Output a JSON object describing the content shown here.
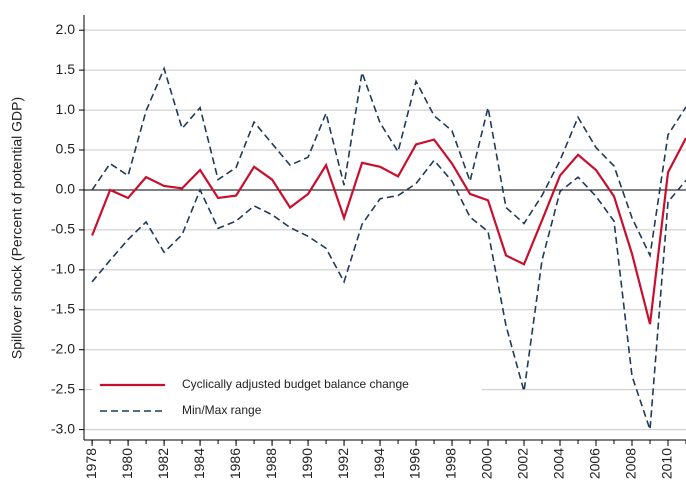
{
  "chart_data": {
    "type": "line",
    "y_label": "Spillover shock (Percent of potential GDP)",
    "x": [
      1978,
      1979,
      1980,
      1981,
      1982,
      1983,
      1984,
      1985,
      1986,
      1987,
      1988,
      1989,
      1990,
      1991,
      1992,
      1993,
      1994,
      1995,
      1996,
      1997,
      1998,
      1999,
      2000,
      2001,
      2002,
      2003,
      2004,
      2005,
      2006,
      2007,
      2008,
      2009,
      2010,
      2011
    ],
    "series": [
      {
        "name": "Cyclically adjusted budget balance change",
        "color": "#c8102e",
        "dash": false,
        "values": [
          -0.57,
          0.0,
          -0.1,
          0.16,
          0.05,
          0.02,
          0.25,
          -0.1,
          -0.07,
          0.29,
          0.13,
          -0.22,
          -0.05,
          0.31,
          -0.35,
          0.34,
          0.29,
          0.17,
          0.57,
          0.63,
          0.33,
          -0.05,
          -0.13,
          -0.82,
          -0.93,
          -0.38,
          0.18,
          0.44,
          0.25,
          -0.08,
          -0.8,
          -1.68,
          0.22,
          0.65
        ]
      },
      {
        "name": "Min/Max range",
        "color": "#1f3b5a",
        "dash": true,
        "values": [
          0.0,
          0.33,
          0.18,
          0.99,
          1.52,
          0.77,
          1.03,
          0.13,
          0.28,
          0.85,
          0.58,
          0.31,
          0.41,
          0.96,
          0.06,
          1.47,
          0.84,
          0.48,
          1.36,
          0.93,
          0.74,
          0.11,
          1.03,
          -0.22,
          -0.42,
          -0.07,
          0.37,
          0.91,
          0.53,
          0.3,
          -0.35,
          -0.82,
          0.69,
          1.04
        ],
        "lower": [
          -1.15,
          -0.88,
          -0.62,
          -0.4,
          -0.78,
          -0.56,
          0.0,
          -0.48,
          -0.39,
          -0.2,
          -0.31,
          -0.47,
          -0.58,
          -0.73,
          -1.15,
          -0.43,
          -0.11,
          -0.07,
          0.08,
          0.37,
          0.11,
          -0.34,
          -0.52,
          -1.7,
          -2.52,
          -0.88,
          -0.02,
          0.16,
          -0.08,
          -0.39,
          -2.33,
          -3.0,
          -0.15,
          0.12
        ]
      }
    ],
    "xlim": [
      1977.55,
      2011
    ],
    "xticks": [
      1978,
      1980,
      1982,
      1984,
      1986,
      1988,
      1990,
      1992,
      1994,
      1996,
      1998,
      2000,
      2002,
      2004,
      2006,
      2008,
      2010
    ],
    "ylim": [
      -3.13,
      2.19
    ],
    "yticks": [
      {
        "value": -3,
        "label": "-3.0"
      },
      -2.5,
      {
        "value": -2,
        "label": "-2.0"
      },
      -1.5,
      {
        "value": -1,
        "label": "-1.0"
      },
      -0.5,
      {
        "value": 0,
        "label": "0.0"
      },
      0.5,
      {
        "value": 1,
        "label": "1.0"
      },
      1.5,
      {
        "value": 2,
        "label": "2.0"
      }
    ],
    "grid": true
  }
}
